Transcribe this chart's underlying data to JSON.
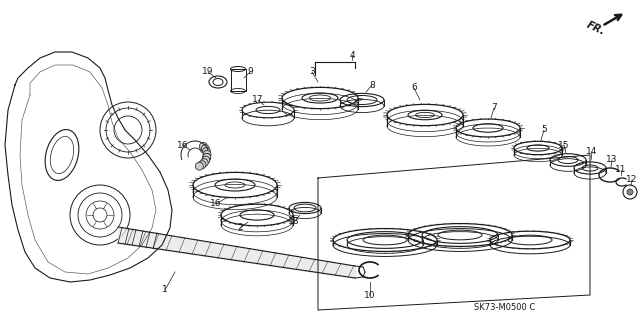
{
  "bg_color": "#ffffff",
  "line_color": "#1a1a1a",
  "part_number_text": "SK73-M0500 C",
  "fr_label": "FR.",
  "fig_width": 6.4,
  "fig_height": 3.19,
  "dpi": 100
}
